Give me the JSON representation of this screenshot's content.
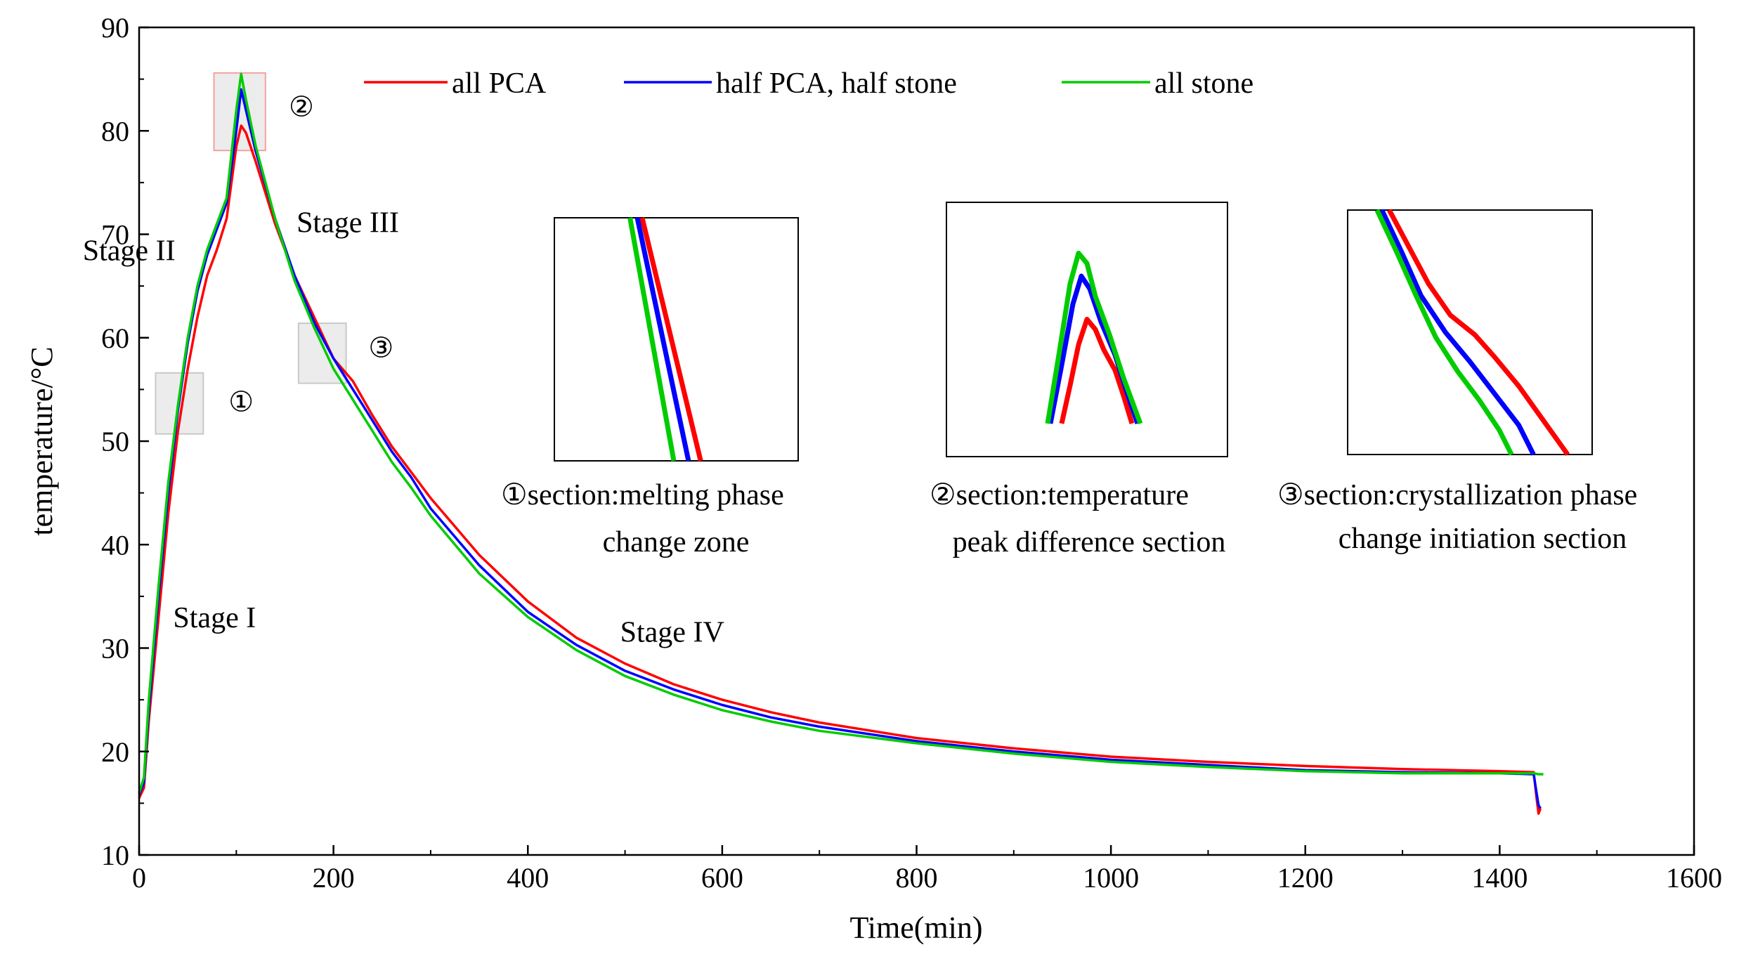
{
  "chart_data": {
    "type": "line",
    "xlabel": "Time(min)",
    "ylabel": "temperature/°C",
    "xlim": [
      0,
      1600
    ],
    "ylim": [
      10,
      90
    ],
    "xticks": [
      "0",
      "200",
      "400",
      "600",
      "800",
      "1000",
      "1200",
      "1400",
      "1600"
    ],
    "yticks": [
      "10",
      "20",
      "30",
      "40",
      "50",
      "60",
      "70",
      "80",
      "90"
    ],
    "legend_position": "top",
    "grid": false,
    "series": [
      {
        "name": "all PCA",
        "color": "#ff0000",
        "x": [
          0,
          5,
          10,
          20,
          30,
          40,
          50,
          60,
          70,
          80,
          90,
          100,
          105,
          110,
          120,
          140,
          160,
          180,
          200,
          220,
          240,
          260,
          280,
          300,
          350,
          400,
          450,
          500,
          550,
          600,
          650,
          700,
          800,
          900,
          1000,
          1100,
          1200,
          1300,
          1400,
          1435,
          1438,
          1440,
          1442
        ],
        "y": [
          15.5,
          16.5,
          23,
          33,
          43,
          51,
          57,
          62,
          66,
          68.5,
          71.5,
          78.5,
          80.5,
          79.8,
          77,
          71,
          66,
          62,
          58,
          55.8,
          52.5,
          49.5,
          47,
          44.5,
          39,
          34.5,
          31,
          28.5,
          26.5,
          25,
          23.8,
          22.8,
          21.3,
          20.3,
          19.5,
          19,
          18.6,
          18.3,
          18.1,
          18,
          15.5,
          14,
          14.5
        ]
      },
      {
        "name": "half PCA, half stone",
        "color": "#0000ff",
        "x": [
          0,
          5,
          10,
          20,
          30,
          40,
          50,
          60,
          70,
          80,
          90,
          100,
          105,
          110,
          120,
          140,
          160,
          180,
          200,
          220,
          240,
          260,
          280,
          300,
          350,
          400,
          450,
          500,
          550,
          600,
          650,
          700,
          800,
          900,
          1000,
          1100,
          1200,
          1300,
          1400,
          1435,
          1438,
          1440,
          1442
        ],
        "y": [
          15.8,
          17,
          24,
          35,
          45,
          53,
          59.5,
          64.5,
          68,
          70.5,
          73,
          80,
          84,
          82,
          78,
          71.5,
          66,
          61.5,
          58,
          55,
          52,
          49,
          46.5,
          43.5,
          38,
          33.5,
          30.3,
          27.8,
          26,
          24.5,
          23.3,
          22.4,
          21,
          20,
          19.2,
          18.7,
          18.2,
          18,
          17.9,
          17.8,
          16,
          14.8,
          14.5
        ]
      },
      {
        "name": "all stone",
        "color": "#00cc00",
        "x": [
          0,
          5,
          10,
          20,
          30,
          40,
          50,
          60,
          70,
          80,
          90,
          100,
          105,
          110,
          120,
          140,
          160,
          180,
          200,
          220,
          240,
          260,
          280,
          300,
          350,
          400,
          450,
          500,
          550,
          600,
          650,
          700,
          800,
          900,
          1000,
          1100,
          1200,
          1300,
          1400,
          1435,
          1440,
          1445
        ],
        "y": [
          16,
          17.5,
          25,
          36,
          46,
          53.5,
          60,
          65,
          68.5,
          71,
          73.5,
          82,
          85.5,
          83,
          78.5,
          71.5,
          65.5,
          61,
          57,
          54,
          51,
          48,
          45.5,
          42.8,
          37.2,
          33,
          29.8,
          27.3,
          25.5,
          24,
          22.9,
          22,
          20.8,
          19.8,
          19,
          18.5,
          18.1,
          17.9,
          17.9,
          17.9,
          17.8,
          17.8
        ]
      }
    ],
    "annotations": [
      {
        "text": "Stage I",
        "x": 35,
        "y": 32
      },
      {
        "text": "Stage II",
        "x": -58,
        "y": 67.5
      },
      {
        "text": "Stage III",
        "x": 162,
        "y": 70.2
      },
      {
        "text": "Stage IV",
        "x": 495,
        "y": 30.6
      }
    ],
    "section_markers": [
      {
        "symbol": "①",
        "x0": 17,
        "x1": 66,
        "y0": 50.7,
        "y1": 56.6,
        "label_x": 92,
        "label_y": 52.9
      },
      {
        "symbol": "②",
        "x0": 77,
        "x1": 130,
        "y0": 78.1,
        "y1": 85.6,
        "label_x": 154,
        "label_y": 81.4
      },
      {
        "symbol": "③",
        "x0": 164,
        "x1": 213,
        "y0": 55.6,
        "y1": 61.4,
        "label_x": 236,
        "label_y": 58.1
      }
    ],
    "insets": [
      {
        "id": "inset1",
        "caption_symbol": "①",
        "caption_line1": "section:melting phase",
        "caption_line2": "change zone",
        "lines": [
          {
            "color": "#ff0000",
            "x": [
              0.36,
              0.6
            ],
            "y": [
              0.0,
              1.0
            ]
          },
          {
            "color": "#0000ff",
            "x": [
              0.34,
              0.55
            ],
            "y": [
              0.0,
              1.0
            ]
          },
          {
            "color": "#00cc00",
            "x": [
              0.31,
              0.49
            ],
            "y": [
              0.0,
              1.0
            ]
          }
        ]
      },
      {
        "id": "inset2",
        "caption_symbol": "②",
        "caption_line1": "section:temperature",
        "caption_line2": "peak difference section",
        "lines": [
          {
            "color": "#ff0000",
            "x": [
              0.41,
              0.44,
              0.47,
              0.5,
              0.53,
              0.56,
              0.6,
              0.63,
              0.66
            ],
            "y": [
              0.87,
              0.72,
              0.56,
              0.46,
              0.5,
              0.58,
              0.66,
              0.76,
              0.87
            ]
          },
          {
            "color": "#0000ff",
            "x": [
              0.37,
              0.41,
              0.45,
              0.48,
              0.51,
              0.55,
              0.6,
              0.64,
              0.68
            ],
            "y": [
              0.87,
              0.64,
              0.4,
              0.29,
              0.34,
              0.47,
              0.6,
              0.74,
              0.87
            ]
          },
          {
            "color": "#00cc00",
            "x": [
              0.36,
              0.4,
              0.44,
              0.47,
              0.5,
              0.53,
              0.58,
              0.63,
              0.69
            ],
            "y": [
              0.87,
              0.6,
              0.32,
              0.2,
              0.24,
              0.37,
              0.52,
              0.69,
              0.87
            ]
          }
        ]
      },
      {
        "id": "inset3",
        "caption_symbol": "③",
        "caption_line1": "section:crystallization phase",
        "caption_line2": "change initiation section",
        "lines": [
          {
            "color": "#ff0000",
            "x": [
              0.17,
              0.25,
              0.33,
              0.42,
              0.52,
              0.6,
              0.7,
              0.8,
              0.9
            ],
            "y": [
              0.0,
              0.15,
              0.3,
              0.43,
              0.51,
              0.6,
              0.72,
              0.86,
              1.0
            ]
          },
          {
            "color": "#0000ff",
            "x": [
              0.14,
              0.22,
              0.3,
              0.4,
              0.5,
              0.6,
              0.7,
              0.76
            ],
            "y": [
              0.0,
              0.17,
              0.35,
              0.5,
              0.62,
              0.75,
              0.88,
              1.0
            ]
          },
          {
            "color": "#00cc00",
            "x": [
              0.12,
              0.2,
              0.28,
              0.36,
              0.45,
              0.54,
              0.62,
              0.67
            ],
            "y": [
              0.0,
              0.17,
              0.35,
              0.52,
              0.66,
              0.78,
              0.9,
              1.0
            ]
          }
        ]
      }
    ]
  }
}
